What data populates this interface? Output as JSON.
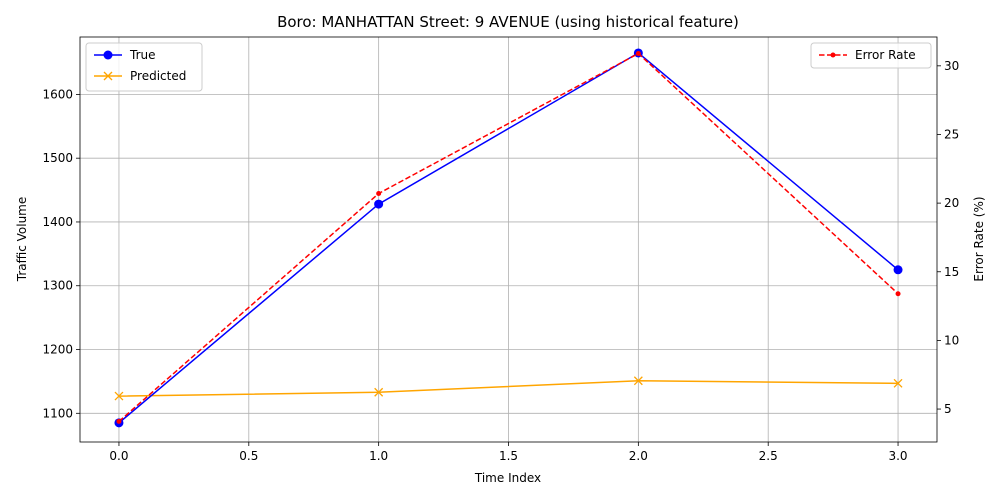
{
  "chart_data": {
    "type": "line",
    "title": "Boro: MANHATTAN Street: 9 AVENUE (using historical feature)",
    "xlabel": "Time Index",
    "ylabel": "Traffic Volume",
    "y2label": "Error Rate (%)",
    "x": [
      0,
      1,
      2,
      3
    ],
    "xlim": [
      -0.15,
      3.15
    ],
    "ylim": [
      1055,
      1690
    ],
    "y2lim": [
      2.6,
      32.1
    ],
    "xticks": [
      0.0,
      0.5,
      1.0,
      1.5,
      2.0,
      2.5,
      3.0
    ],
    "xtick_labels": [
      "0.0",
      "0.5",
      "1.0",
      "1.5",
      "2.0",
      "2.5",
      "3.0"
    ],
    "yticks": [
      1100,
      1200,
      1300,
      1400,
      1500,
      1600
    ],
    "ytick_labels": [
      "1100",
      "1200",
      "1300",
      "1400",
      "1500",
      "1600"
    ],
    "y2ticks": [
      5,
      10,
      15,
      20,
      25,
      30
    ],
    "y2tick_labels": [
      "5",
      "10",
      "15",
      "20",
      "25",
      "30"
    ],
    "grid": true,
    "series": [
      {
        "name": "True",
        "axis": "left",
        "color": "#0000ff",
        "marker": "circle",
        "dash": "solid",
        "values": [
          1085,
          1428,
          1665,
          1325
        ]
      },
      {
        "name": "Predicted",
        "axis": "left",
        "color": "#ffa500",
        "marker": "x",
        "dash": "solid",
        "values": [
          1127,
          1133,
          1151,
          1147
        ]
      },
      {
        "name": "Error Rate",
        "axis": "right",
        "color": "#ff0000",
        "marker": "dot",
        "dash": "dashed",
        "values": [
          4.1,
          20.7,
          30.9,
          13.4
        ]
      }
    ],
    "legends": [
      {
        "placement": "top-left",
        "entries": [
          "True",
          "Predicted"
        ]
      },
      {
        "placement": "top-right",
        "entries": [
          "Error Rate"
        ]
      }
    ]
  }
}
